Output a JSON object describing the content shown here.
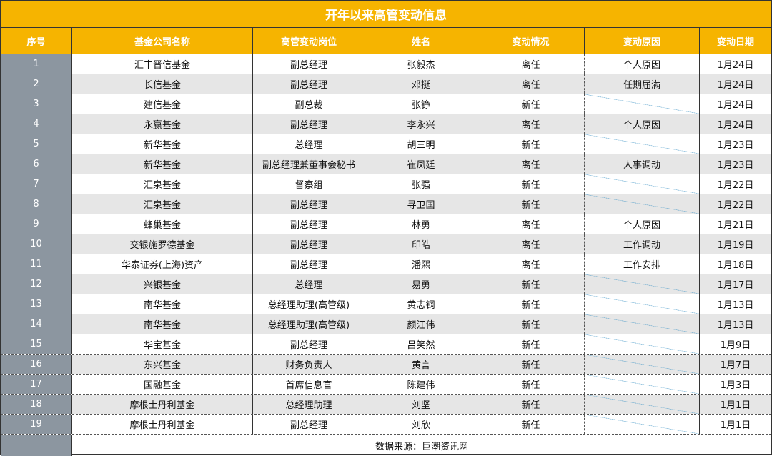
{
  "title": "开年以来高管变动信息",
  "headers": [
    "序号",
    "基金公司名称",
    "高管变动岗位",
    "姓名",
    "变动情况",
    "变动原因",
    "变动日期"
  ],
  "rows": [
    [
      "1",
      "汇丰晋信基金",
      "副总经理",
      "张毅杰",
      "离任",
      "个人原因",
      "1月24日"
    ],
    [
      "2",
      "长信基金",
      "副总经理",
      "邓挺",
      "离任",
      "任期届满",
      "1月24日"
    ],
    [
      "3",
      "建信基金",
      "副总裁",
      "张铮",
      "新任",
      "",
      "1月24日"
    ],
    [
      "4",
      "永赢基金",
      "副总经理",
      "李永兴",
      "离任",
      "个人原因",
      "1月24日"
    ],
    [
      "5",
      "新华基金",
      "总经理",
      "胡三明",
      "新任",
      "",
      "1月23日"
    ],
    [
      "6",
      "新华基金",
      "副总经理兼董事会秘书",
      "崔凤廷",
      "离任",
      "人事调动",
      "1月23日"
    ],
    [
      "7",
      "汇泉基金",
      "督察组",
      "张强",
      "新任",
      "",
      "1月22日"
    ],
    [
      "8",
      "汇泉基金",
      "副总经理",
      "寻卫国",
      "新任",
      "",
      "1月22日"
    ],
    [
      "9",
      "蜂巢基金",
      "副总经理",
      "林勇",
      "离任",
      "个人原因",
      "1月21日"
    ],
    [
      "10",
      "交银施罗德基金",
      "副总经理",
      "印皓",
      "离任",
      "工作调动",
      "1月19日"
    ],
    [
      "11",
      "华泰证券(上海)资产",
      "副总经理",
      "潘熙",
      "离任",
      "工作安排",
      "1月18日"
    ],
    [
      "12",
      "兴银基金",
      "总经理",
      "易勇",
      "新任",
      "",
      "1月17日"
    ],
    [
      "13",
      "南华基金",
      "总经理助理(高管级)",
      "黄志钢",
      "新任",
      "",
      "1月13日"
    ],
    [
      "14",
      "南华基金",
      "总经理助理(高管级)",
      "颜江伟",
      "新任",
      "",
      "1月13日"
    ],
    [
      "15",
      "华宝基金",
      "副总经理",
      "吕笑然",
      "新任",
      "",
      "1月9日"
    ],
    [
      "16",
      "东兴基金",
      "财务负责人",
      "黄言",
      "新任",
      "",
      "1月7日"
    ],
    [
      "17",
      "国融基金",
      "首席信息官",
      "陈建伟",
      "新任",
      "",
      "1月3日"
    ],
    [
      "18",
      "摩根士丹利基金",
      "总经理助理",
      "刘坚",
      "新任",
      "",
      "1月1日"
    ],
    [
      "19",
      "摩根士丹利基金",
      "副总经理",
      "刘欣",
      "新任",
      "",
      "1月1日"
    ]
  ],
  "footer": "数据来源：巨潮资讯网",
  "colors": {
    "header": "#f6b400",
    "index": "#8c96a0",
    "stripe": "#e6e6e6"
  }
}
